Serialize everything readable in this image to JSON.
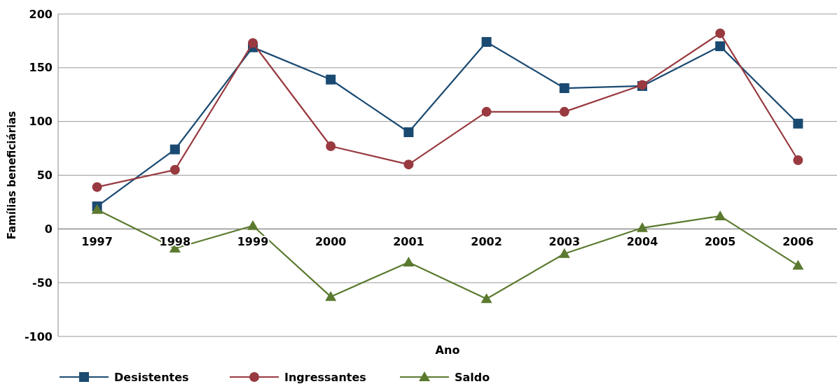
{
  "chart_data": {
    "type": "line",
    "xlabel": "Ano",
    "ylabel": "Famílias beneficiárias",
    "categories": [
      "1997",
      "1998",
      "1999",
      "2000",
      "2001",
      "2002",
      "2003",
      "2004",
      "2005",
      "2006"
    ],
    "series": [
      {
        "name": "Desistentes",
        "color": "#1a4a72",
        "marker": "square",
        "values": [
          21,
          74,
          169,
          139,
          90,
          174,
          131,
          133,
          170,
          98
        ]
      },
      {
        "name": "Ingressantes",
        "color": "#983a40",
        "marker": "circle",
        "values": [
          39,
          55,
          173,
          77,
          60,
          109,
          109,
          134,
          182,
          64
        ]
      },
      {
        "name": "Saldo",
        "color": "#5b7a2f",
        "marker": "triangle",
        "values": [
          18,
          -18,
          3,
          -63,
          -31,
          -65,
          -23,
          1,
          12,
          -34
        ]
      }
    ],
    "ylim": [
      -100,
      200
    ],
    "yticks": [
      -100,
      -50,
      0,
      50,
      100,
      150,
      200
    ],
    "grid": "y",
    "legend": "bottom left"
  }
}
